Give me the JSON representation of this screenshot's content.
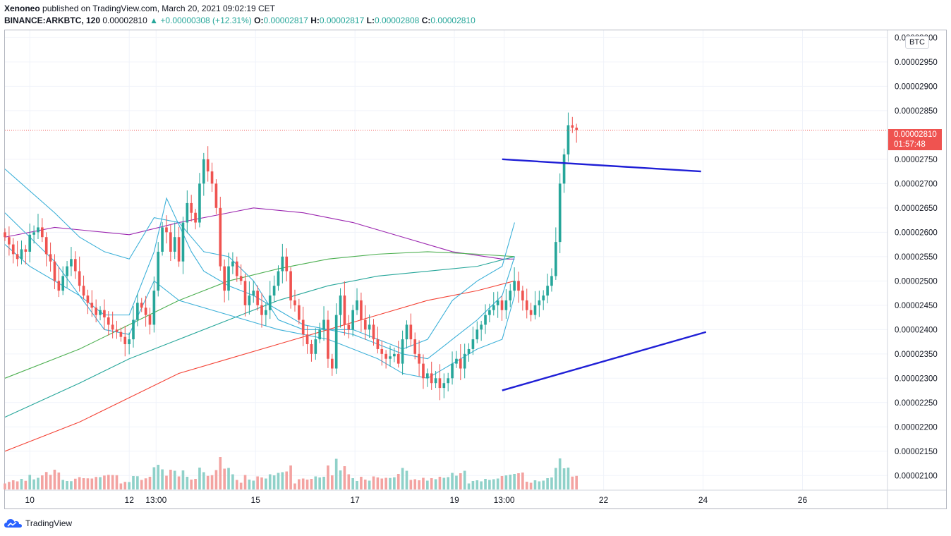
{
  "header": {
    "author": "Xenoneo",
    "published_text": "published on TradingView.com, March 20, 2021 09:02:19 CET",
    "symbol": "BINANCE:ARKBTC, 120",
    "last": "0.00002810",
    "change": "▲ +0.00000308 (+12.31%)",
    "o_label": "O:",
    "o_value": "0.00002817",
    "h_label": "H:",
    "h_value": "0.00002817",
    "l_label": "L:",
    "l_value": "0.00002808",
    "c_label": "C:",
    "c_value": "0.00002810"
  },
  "currency_badge": "BTC",
  "price_label": {
    "price": "0.00002810",
    "countdown": "01:57:48"
  },
  "brand": "TradingView",
  "colors": {
    "up": "#26a69a",
    "down": "#ef5350",
    "vol_up": "#8fd1c9",
    "vol_down": "#f3a3a1",
    "ma_purple": "#9c27b0",
    "ma_green": "#4caf50",
    "ma_teal": "#26a69a",
    "ma_red": "#f44336",
    "bb_blue": "#3cb0d8",
    "trendline": "#1f1fd6"
  },
  "chart_data": {
    "type": "candlestick",
    "symbol": "BINANCE:ARKBTC",
    "interval": "120",
    "yticks": [
      "0.00003000",
      "0.00002950",
      "0.00002900",
      "0.00002850",
      "0.00002750",
      "0.00002700",
      "0.00002650",
      "0.00002600",
      "0.00002550",
      "0.00002500",
      "0.00002450",
      "0.00002400",
      "0.00002350",
      "0.00002300",
      "0.00002250",
      "0.00002200",
      "0.00002150",
      "0.00002100"
    ],
    "ylim": [
      2.07e-05,
      3.015e-05
    ],
    "xlim": [
      9.5,
      27.25
    ],
    "xticks": [
      {
        "label": "10",
        "x": 10
      },
      {
        "label": "12",
        "x": 12
      },
      {
        "label": "13:00",
        "x": 12.54
      },
      {
        "label": "15",
        "x": 14.54
      },
      {
        "label": "17",
        "x": 16.54
      },
      {
        "label": "19",
        "x": 18.54
      },
      {
        "label": "13:00",
        "x": 19.54
      },
      {
        "label": "22",
        "x": 21.54
      },
      {
        "label": "24",
        "x": 23.54
      },
      {
        "label": "26",
        "x": 25.54
      }
    ],
    "last_price": 2.81e-05,
    "candle_start_x": 9.5,
    "candle_step": 0.0833,
    "candles": [],
    "ohlc_close": [
      2590,
      2575,
      2555,
      2545,
      2565,
      2560,
      2595,
      2600,
      2610,
      2590,
      2555,
      2540,
      2500,
      2480,
      2510,
      2530,
      2545,
      2520,
      2490,
      2470,
      2455,
      2445,
      2430,
      2440,
      2425,
      2410,
      2400,
      2395,
      2385,
      2370,
      2380,
      2420,
      2455,
      2445,
      2430,
      2410,
      2480,
      2560,
      2610,
      2600,
      2560,
      2590,
      2540,
      2620,
      2660,
      2640,
      2620,
      2700,
      2750,
      2725,
      2700,
      2650,
      2530,
      2480,
      2530,
      2540,
      2510,
      2500,
      2450,
      2470,
      2480,
      2450,
      2430,
      2440,
      2470,
      2490,
      2520,
      2550,
      2520,
      2460,
      2450,
      2420,
      2390,
      2370,
      2350,
      2380,
      2400,
      2420,
      2340,
      2320,
      2430,
      2470,
      2410,
      2400,
      2440,
      2460,
      2420,
      2400,
      2410,
      2380,
      2360,
      2350,
      2340,
      2345,
      2350,
      2330,
      2380,
      2410,
      2380,
      2350,
      2330,
      2300,
      2310,
      2290,
      2300,
      2280,
      2290,
      2300,
      2330,
      2340,
      2320,
      2350,
      2360,
      2380,
      2400,
      2410,
      2430,
      2440,
      2450,
      2460,
      2440,
      2460,
      2480,
      2500,
      2480,
      2460,
      2440,
      2430,
      2450,
      2460,
      2470,
      2490,
      2510,
      2580,
      2700,
      2760,
      2820,
      2815,
      2810
    ],
    "indicators": [
      {
        "name": "MA purple",
        "color": "#9c27b0",
        "points": [
          [
            9.5,
            2590
          ],
          [
            10.5,
            2610
          ],
          [
            12,
            2595
          ],
          [
            13,
            2620
          ],
          [
            14,
            2640
          ],
          [
            14.5,
            2650
          ],
          [
            15.5,
            2640
          ],
          [
            16.5,
            2620
          ],
          [
            17.5,
            2590
          ],
          [
            18.5,
            2560
          ],
          [
            19.5,
            2545
          ],
          [
            19.75,
            2545
          ]
        ]
      },
      {
        "name": "MA green",
        "color": "#4caf50",
        "points": [
          [
            9.5,
            2300
          ],
          [
            11,
            2360
          ],
          [
            12,
            2410
          ],
          [
            13,
            2460
          ],
          [
            14,
            2500
          ],
          [
            15,
            2525
          ],
          [
            16,
            2545
          ],
          [
            17,
            2555
          ],
          [
            18,
            2560
          ],
          [
            19,
            2555
          ],
          [
            19.75,
            2550
          ]
        ]
      },
      {
        "name": "MA teal",
        "color": "#26a69a",
        "points": [
          [
            9.5,
            2220
          ],
          [
            11,
            2290
          ],
          [
            12,
            2340
          ],
          [
            13,
            2380
          ],
          [
            14,
            2420
          ],
          [
            15,
            2460
          ],
          [
            16,
            2490
          ],
          [
            17,
            2510
          ],
          [
            18,
            2520
          ],
          [
            19,
            2530
          ],
          [
            19.75,
            2550
          ]
        ]
      },
      {
        "name": "MA red",
        "color": "#f44336",
        "points": [
          [
            9.5,
            2150
          ],
          [
            11,
            2210
          ],
          [
            12,
            2260
          ],
          [
            13,
            2310
          ],
          [
            14,
            2340
          ],
          [
            15,
            2370
          ],
          [
            16,
            2400
          ],
          [
            17,
            2430
          ],
          [
            18,
            2460
          ],
          [
            19,
            2480
          ],
          [
            19.75,
            2500
          ]
        ]
      },
      {
        "name": "BB upper",
        "color": "#3cb0d8",
        "points": [
          [
            9.5,
            2730
          ],
          [
            10.5,
            2640
          ],
          [
            11,
            2590
          ],
          [
            11.5,
            2560
          ],
          [
            12,
            2545
          ],
          [
            12.5,
            2630
          ],
          [
            13,
            2620
          ],
          [
            13.5,
            2560
          ],
          [
            14,
            2550
          ],
          [
            14.5,
            2500
          ],
          [
            15,
            2420
          ],
          [
            15.5,
            2400
          ],
          [
            16.5,
            2400
          ],
          [
            17,
            2380
          ],
          [
            17.5,
            2360
          ],
          [
            18,
            2380
          ],
          [
            18.5,
            2460
          ],
          [
            19,
            2500
          ],
          [
            19.5,
            2530
          ],
          [
            19.75,
            2620
          ]
        ]
      },
      {
        "name": "BB middle",
        "color": "#3cb0d8",
        "points": [
          [
            9.5,
            2640
          ],
          [
            10,
            2590
          ],
          [
            10.5,
            2540
          ],
          [
            11,
            2470
          ],
          [
            11.5,
            2430
          ],
          [
            12,
            2430
          ],
          [
            12.5,
            2560
          ],
          [
            12.75,
            2670
          ],
          [
            13.25,
            2560
          ],
          [
            13.5,
            2520
          ],
          [
            14,
            2490
          ],
          [
            14.5,
            2470
          ],
          [
            15,
            2440
          ],
          [
            15.5,
            2410
          ],
          [
            16,
            2400
          ],
          [
            16.5,
            2390
          ],
          [
            17,
            2370
          ],
          [
            17.5,
            2350
          ],
          [
            18,
            2340
          ],
          [
            18.5,
            2380
          ],
          [
            19,
            2420
          ],
          [
            19.5,
            2470
          ],
          [
            19.75,
            2550
          ]
        ]
      },
      {
        "name": "BB lower",
        "color": "#3cb0d8",
        "points": [
          [
            9.5,
            2575
          ],
          [
            10,
            2530
          ],
          [
            11,
            2470
          ],
          [
            11.5,
            2400
          ],
          [
            12,
            2390
          ],
          [
            12.5,
            2500
          ],
          [
            13,
            2460
          ],
          [
            14,
            2430
          ],
          [
            15,
            2400
          ],
          [
            16,
            2380
          ],
          [
            17,
            2340
          ],
          [
            17.5,
            2310
          ],
          [
            18,
            2300
          ],
          [
            18.5,
            2330
          ],
          [
            19,
            2360
          ],
          [
            19.5,
            2380
          ],
          [
            19.75,
            2470
          ]
        ]
      }
    ],
    "trendlines": [
      {
        "from": [
          19.5,
          2750
        ],
        "to": [
          23.5,
          2725
        ]
      },
      {
        "from": [
          19.5,
          2275
        ],
        "to": [
          23.6,
          2395
        ]
      }
    ]
  }
}
